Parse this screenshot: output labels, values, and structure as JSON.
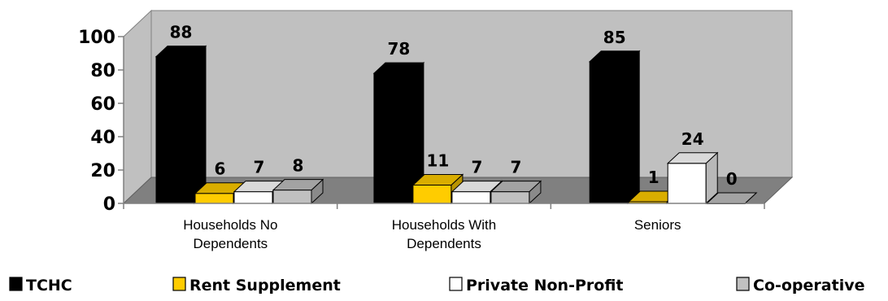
{
  "chart_data": {
    "type": "bar",
    "categories": [
      "Households No Dependents",
      "Households With Dependents",
      "Seniors"
    ],
    "category_lines": [
      [
        "Households No",
        "Dependents"
      ],
      [
        "Households With",
        "Dependents"
      ],
      [
        "Seniors"
      ]
    ],
    "series": [
      {
        "name": "TCHC",
        "values": [
          88,
          78,
          85
        ],
        "color": "#000000"
      },
      {
        "name": "Rent Supplement",
        "values": [
          6,
          11,
          1
        ],
        "color": "#FFCC00"
      },
      {
        "name": "Private Non-Profit",
        "values": [
          7,
          7,
          24
        ],
        "color": "#FFFFFF"
      },
      {
        "name": "Co-operative",
        "values": [
          8,
          7,
          0
        ],
        "color": "#C0C0C0"
      }
    ],
    "y_ticks": [
      "0",
      "20",
      "40",
      "60",
      "80",
      "100"
    ],
    "ylim": [
      0,
      100
    ],
    "grid": false,
    "legend_position": "bottom",
    "style": "3d-column",
    "wall_color": "#C0C0C0",
    "floor_color": "#808080"
  }
}
